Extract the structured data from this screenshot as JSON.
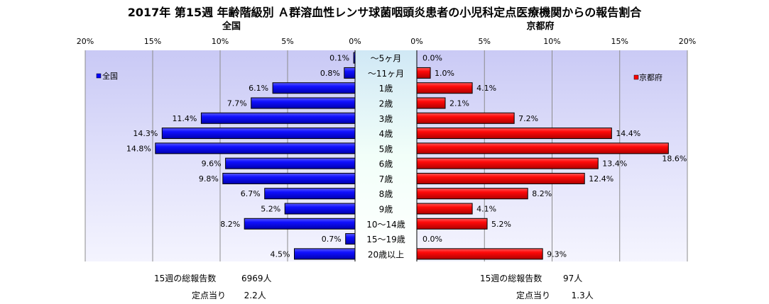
{
  "title": "2017年 第15週 年齢階級別 Ａ群溶血性レンサ球菌咽頭炎患者の小児科定点医療機関からの報告割合",
  "chart_data": [
    {
      "type": "bar",
      "subtitle": "全国",
      "orientation": "horizontal",
      "direction": "leftward",
      "categories": [
        "〜5ヶ月",
        "〜11ヶ月",
        "1歳",
        "2歳",
        "3歳",
        "4歳",
        "5歳",
        "6歳",
        "7歳",
        "8歳",
        "9歳",
        "10〜14歳",
        "15〜19歳",
        "20歳以上"
      ],
      "series": [
        {
          "name": "全国",
          "color": "#0000ff",
          "values": [
            0.1,
            0.8,
            6.1,
            7.7,
            11.4,
            14.3,
            14.8,
            9.6,
            9.8,
            6.7,
            5.2,
            8.2,
            0.7,
            4.5
          ],
          "labels": [
            "0.1%",
            "0.8%",
            "6.1%",
            "7.7%",
            "11.4%",
            "14.3%",
            "14.8%",
            "9.6%",
            "9.8%",
            "6.7%",
            "5.2%",
            "8.2%",
            "0.7%",
            "4.5%"
          ]
        }
      ],
      "xlim": [
        0,
        20
      ],
      "ticks": [
        "20%",
        "15%",
        "10%",
        "5%",
        "0%"
      ],
      "legend": "top-left",
      "grid": true
    },
    {
      "type": "bar",
      "subtitle": "京都府",
      "orientation": "horizontal",
      "direction": "rightward",
      "categories": [
        "〜5ヶ月",
        "〜11ヶ月",
        "1歳",
        "2歳",
        "3歳",
        "4歳",
        "5歳",
        "6歳",
        "7歳",
        "8歳",
        "9歳",
        "10〜14歳",
        "15〜19歳",
        "20歳以上"
      ],
      "series": [
        {
          "name": "京都府",
          "color": "#ff0000",
          "values": [
            0.0,
            1.0,
            4.1,
            2.1,
            7.2,
            14.4,
            18.6,
            13.4,
            12.4,
            8.2,
            4.1,
            5.2,
            0.0,
            9.3
          ],
          "labels": [
            "0.0%",
            "1.0%",
            "4.1%",
            "2.1%",
            "7.2%",
            "14.4%",
            "18.6%",
            "13.4%",
            "12.4%",
            "8.2%",
            "4.1%",
            "5.2%",
            "0.0%",
            "9.3%"
          ]
        }
      ],
      "xlim": [
        0,
        20
      ],
      "ticks": [
        "0%",
        "5%",
        "10%",
        "15%",
        "20%"
      ],
      "legend": "top-right",
      "grid": true
    }
  ],
  "footer": {
    "left": {
      "total_label": "15週の総報告数",
      "total_value": "6969人",
      "per_label": "定点当り",
      "per_value": "2.2人"
    },
    "right": {
      "total_label": "15週の総報告数",
      "total_value": "97人",
      "per_label": "定点当り",
      "per_value": "1.3人"
    }
  }
}
